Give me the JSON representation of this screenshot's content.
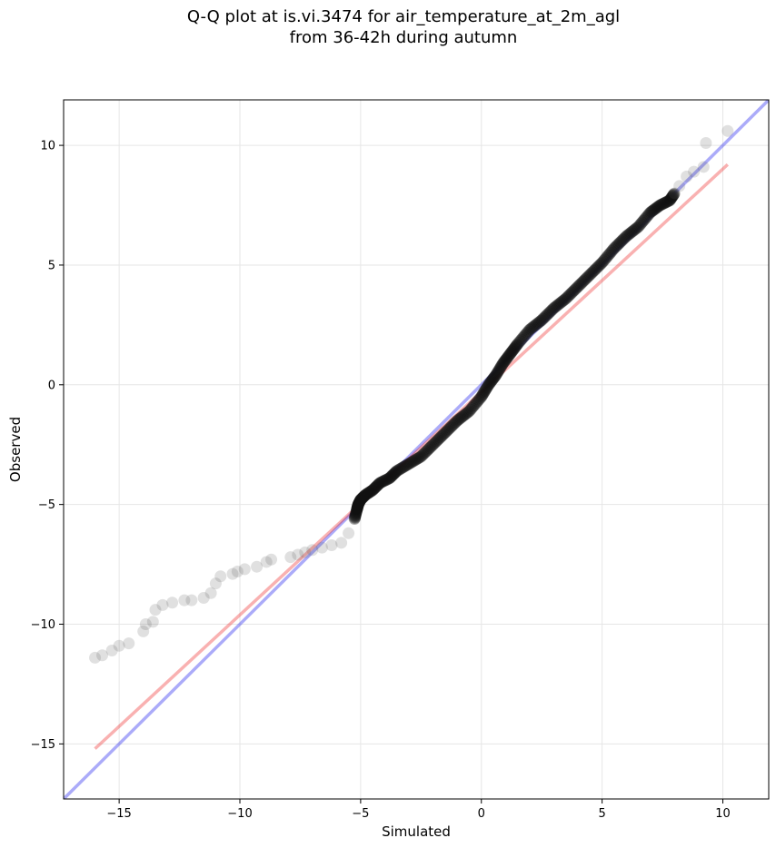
{
  "chart_data": {
    "type": "scatter",
    "title_line1": "Q-Q plot at is.vi.3474 for air_temperature_at_2m_agl",
    "title_line2": "from 36-42h during autumn",
    "xlabel": "Simulated",
    "ylabel": "Observed",
    "xlim": [
      -17.3,
      11.9
    ],
    "ylim": [
      -17.3,
      11.9
    ],
    "x_ticks": [
      -15,
      -10,
      -5,
      0,
      5,
      10
    ],
    "y_ticks": [
      -15,
      -10,
      -5,
      0,
      5,
      10
    ],
    "x_tick_labels": [
      "−15",
      "−10",
      "−5",
      "0",
      "5",
      "10"
    ],
    "y_tick_labels": [
      "−15",
      "−10",
      "−5",
      "0",
      "5",
      "10"
    ],
    "grid": true,
    "colors": {
      "points": "#555555",
      "core_points": "#111111",
      "identity_line": "#0000ee",
      "fit_line": "#ee1111",
      "grid": "#e6e6e6"
    },
    "reference_lines": [
      {
        "kind": "identity",
        "x": [
          -17.3,
          11.9
        ],
        "y": [
          -17.3,
          11.9
        ]
      },
      {
        "kind": "fit",
        "x": [
          -16.0,
          10.2
        ],
        "y": [
          -15.2,
          9.2
        ]
      }
    ],
    "quantiles": {
      "x": [
        -16.0,
        -15.7,
        -15.3,
        -15.0,
        -14.6,
        -14.0,
        -13.9,
        -13.6,
        -13.5,
        -13.2,
        -12.8,
        -12.3,
        -12.0,
        -11.5,
        -11.2,
        -11.0,
        -10.8,
        -10.3,
        -10.1,
        -9.8,
        -9.3,
        -8.9,
        -8.7,
        -7.9,
        -7.6,
        -7.3,
        -7.0,
        -6.6,
        -6.2,
        -5.8,
        -5.5,
        -5.25,
        -5.15,
        -5.1,
        -5.0,
        -4.8,
        -4.5,
        -4.2,
        -3.8,
        -3.5,
        -3.0,
        -2.5,
        -2.0,
        -1.5,
        -1.0,
        -0.5,
        0.0,
        0.3,
        0.6,
        0.9,
        1.2,
        1.5,
        2.0,
        2.5,
        3.0,
        3.5,
        4.0,
        4.5,
        5.0,
        5.5,
        6.0,
        6.5,
        7.0,
        7.4,
        7.8,
        8.0,
        8.2,
        8.5,
        8.8,
        9.2,
        9.3,
        10.2
      ],
      "y": [
        -11.4,
        -11.3,
        -11.1,
        -10.9,
        -10.8,
        -10.3,
        -10.0,
        -9.9,
        -9.4,
        -9.2,
        -9.1,
        -9.0,
        -9.0,
        -8.9,
        -8.7,
        -8.3,
        -8.0,
        -7.9,
        -7.8,
        -7.7,
        -7.6,
        -7.4,
        -7.3,
        -7.2,
        -7.1,
        -7.0,
        -6.9,
        -6.8,
        -6.7,
        -6.6,
        -6.2,
        -5.6,
        -5.2,
        -5.0,
        -4.8,
        -4.6,
        -4.4,
        -4.1,
        -3.9,
        -3.6,
        -3.3,
        -3.0,
        -2.5,
        -2.0,
        -1.5,
        -1.1,
        -0.5,
        0.0,
        0.4,
        0.9,
        1.3,
        1.7,
        2.3,
        2.7,
        3.2,
        3.6,
        4.1,
        4.6,
        5.1,
        5.7,
        6.2,
        6.6,
        7.2,
        7.5,
        7.7,
        8.0,
        8.3,
        8.7,
        8.9,
        9.1,
        10.1,
        10.6
      ]
    }
  }
}
